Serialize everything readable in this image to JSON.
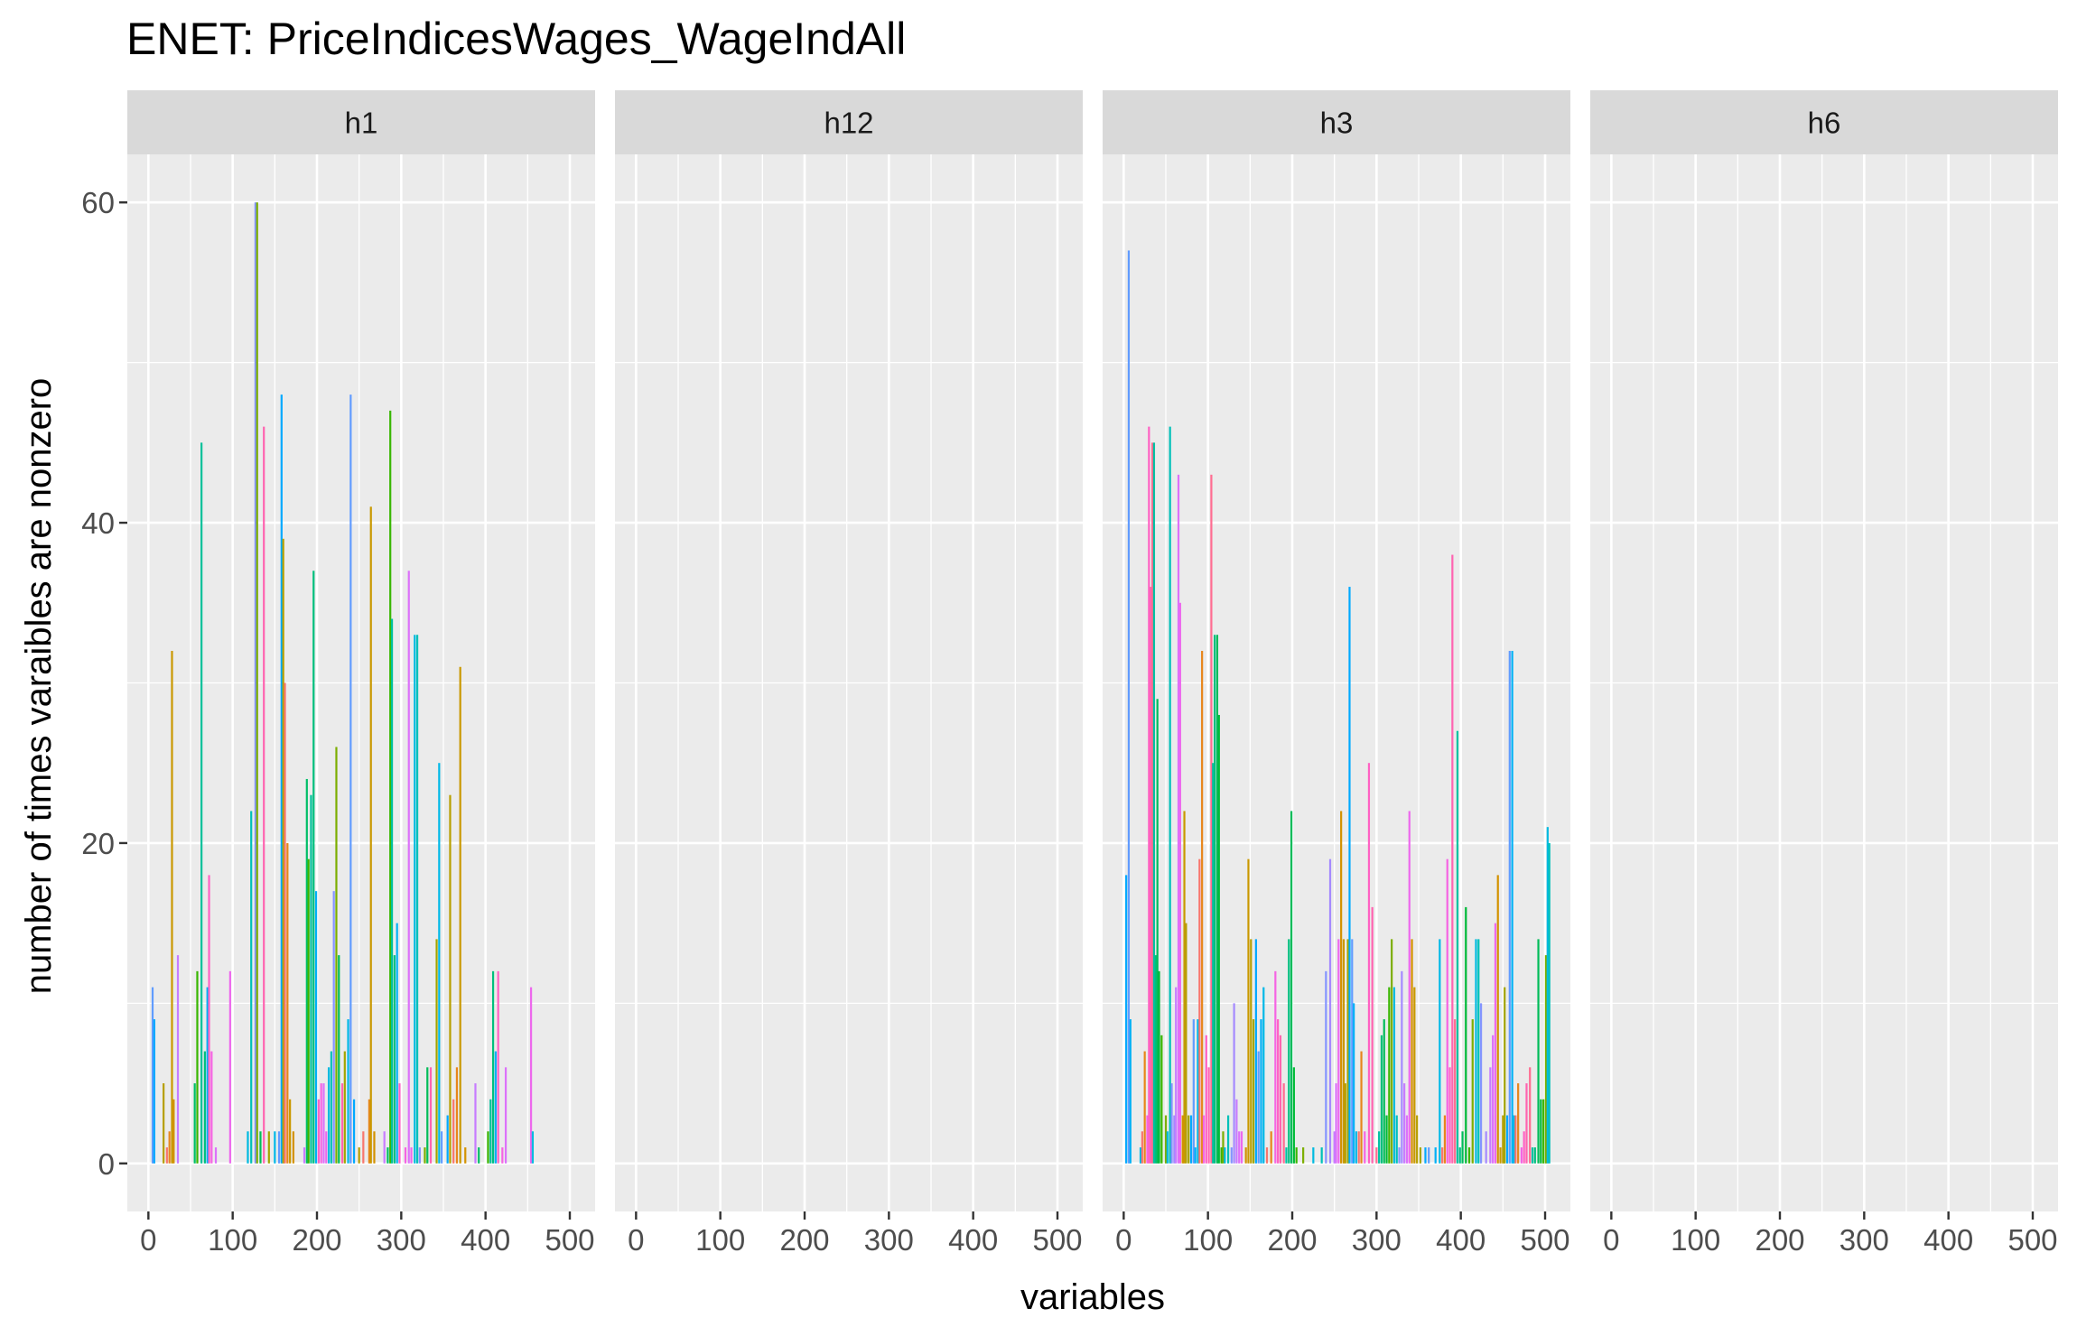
{
  "chart_data": {
    "type": "bar",
    "title": "ENET: PriceIndicesWages_WageIndAll",
    "xlabel": "variables",
    "ylabel": "number of times varaibles are nonzero",
    "xlim": [
      -25,
      530
    ],
    "ylim": [
      -3,
      63
    ],
    "x_ticks": [
      0,
      100,
      200,
      300,
      400,
      500
    ],
    "x_tick_labels": [
      "0",
      "100",
      "200",
      "300",
      "400",
      "500"
    ],
    "y_ticks": [
      0,
      20,
      40,
      60
    ],
    "y_tick_labels": [
      "0",
      "20",
      "40",
      "60"
    ],
    "grid": true,
    "legend": "none",
    "facets": [
      {
        "label": "h1",
        "bars": [
          [
            5,
            11
          ],
          [
            7,
            9
          ],
          [
            18,
            5
          ],
          [
            22,
            1
          ],
          [
            25,
            2
          ],
          [
            28,
            32
          ],
          [
            30,
            4
          ],
          [
            35,
            13
          ],
          [
            55,
            5
          ],
          [
            58,
            12
          ],
          [
            63,
            45
          ],
          [
            67,
            7
          ],
          [
            70,
            11
          ],
          [
            72,
            18
          ],
          [
            75,
            7
          ],
          [
            80,
            1
          ],
          [
            97,
            12
          ],
          [
            118,
            2
          ],
          [
            122,
            22
          ],
          [
            127,
            60
          ],
          [
            129,
            60
          ],
          [
            133,
            2
          ],
          [
            137,
            46
          ],
          [
            143,
            2
          ],
          [
            150,
            2
          ],
          [
            155,
            2
          ],
          [
            158,
            48
          ],
          [
            160,
            39
          ],
          [
            162,
            30
          ],
          [
            165,
            20
          ],
          [
            168,
            4
          ],
          [
            172,
            2
          ],
          [
            185,
            1
          ],
          [
            188,
            24
          ],
          [
            190,
            19
          ],
          [
            193,
            23
          ],
          [
            196,
            37
          ],
          [
            199,
            17
          ],
          [
            202,
            4
          ],
          [
            205,
            5
          ],
          [
            208,
            5
          ],
          [
            211,
            2
          ],
          [
            214,
            6
          ],
          [
            217,
            7
          ],
          [
            220,
            17
          ],
          [
            223,
            26
          ],
          [
            226,
            13
          ],
          [
            230,
            5
          ],
          [
            233,
            7
          ],
          [
            237,
            9
          ],
          [
            240,
            48
          ],
          [
            244,
            4
          ],
          [
            250,
            1
          ],
          [
            255,
            2
          ],
          [
            262,
            4
          ],
          [
            264,
            41
          ],
          [
            268,
            2
          ],
          [
            280,
            2
          ],
          [
            284,
            1
          ],
          [
            287,
            47
          ],
          [
            289,
            34
          ],
          [
            292,
            13
          ],
          [
            295,
            15
          ],
          [
            298,
            5
          ],
          [
            305,
            1
          ],
          [
            309,
            37
          ],
          [
            312,
            1
          ],
          [
            316,
            33
          ],
          [
            319,
            33
          ],
          [
            322,
            1
          ],
          [
            328,
            1
          ],
          [
            331,
            6
          ],
          [
            335,
            6
          ],
          [
            342,
            14
          ],
          [
            345,
            25
          ],
          [
            348,
            2
          ],
          [
            355,
            3
          ],
          [
            358,
            23
          ],
          [
            362,
            4
          ],
          [
            366,
            6
          ],
          [
            370,
            31
          ],
          [
            376,
            1
          ],
          [
            388,
            5
          ],
          [
            392,
            1
          ],
          [
            403,
            2
          ],
          [
            406,
            4
          ],
          [
            409,
            12
          ],
          [
            412,
            7
          ],
          [
            415,
            12
          ],
          [
            420,
            1
          ],
          [
            424,
            6
          ],
          [
            454,
            11
          ],
          [
            456,
            2
          ]
        ],
        "colors": [
          "#619CFF",
          "#00A9FF",
          "#B79F00",
          "#F8766D",
          "#E7861B",
          "#C99800",
          "#D39200",
          "#C77CFF",
          "#00BE67",
          "#39B600",
          "#00C19A",
          "#00BF7D",
          "#00B0F6",
          "#FF61C3",
          "#F564E3",
          "#DC71FA",
          "#ED68ED",
          "#00BAE0",
          "#00C0B8",
          "#8494FF",
          "#7CAE00",
          "#00BC59",
          "#FF64B0",
          "#A3A500",
          "#00B8E7"
        ]
      },
      {
        "label": "h12",
        "bars": [],
        "colors": []
      },
      {
        "label": "h3",
        "bars": [
          [
            3,
            18
          ],
          [
            6,
            57
          ],
          [
            8,
            9
          ],
          [
            20,
            1
          ],
          [
            22,
            2
          ],
          [
            25,
            7
          ],
          [
            28,
            3
          ],
          [
            30,
            46
          ],
          [
            32,
            36
          ],
          [
            34,
            45
          ],
          [
            36,
            45
          ],
          [
            38,
            13
          ],
          [
            40,
            29
          ],
          [
            42,
            12
          ],
          [
            45,
            8
          ],
          [
            50,
            3
          ],
          [
            52,
            2
          ],
          [
            55,
            46
          ],
          [
            57,
            5
          ],
          [
            60,
            3
          ],
          [
            62,
            11
          ],
          [
            65,
            43
          ],
          [
            67,
            35
          ],
          [
            70,
            3
          ],
          [
            72,
            22
          ],
          [
            74,
            15
          ],
          [
            77,
            3
          ],
          [
            80,
            3
          ],
          [
            83,
            9
          ],
          [
            85,
            1
          ],
          [
            88,
            9
          ],
          [
            90,
            19
          ],
          [
            93,
            32
          ],
          [
            95,
            3
          ],
          [
            98,
            8
          ],
          [
            101,
            6
          ],
          [
            104,
            43
          ],
          [
            106,
            25
          ],
          [
            108,
            33
          ],
          [
            111,
            33
          ],
          [
            113,
            28
          ],
          [
            116,
            1
          ],
          [
            118,
            2
          ],
          [
            120,
            1
          ],
          [
            124,
            3
          ],
          [
            128,
            1
          ],
          [
            131,
            10
          ],
          [
            134,
            4
          ],
          [
            137,
            2
          ],
          [
            140,
            2
          ],
          [
            145,
            1
          ],
          [
            148,
            19
          ],
          [
            151,
            14
          ],
          [
            154,
            9
          ],
          [
            157,
            14
          ],
          [
            160,
            7
          ],
          [
            163,
            9
          ],
          [
            166,
            11
          ],
          [
            170,
            1
          ],
          [
            175,
            2
          ],
          [
            180,
            12
          ],
          [
            183,
            9
          ],
          [
            186,
            8
          ],
          [
            190,
            5
          ],
          [
            193,
            1
          ],
          [
            196,
            14
          ],
          [
            199,
            22
          ],
          [
            202,
            6
          ],
          [
            205,
            1
          ],
          [
            213,
            1
          ],
          [
            225,
            1
          ],
          [
            235,
            1
          ],
          [
            240,
            12
          ],
          [
            245,
            19
          ],
          [
            250,
            2
          ],
          [
            252,
            5
          ],
          [
            255,
            14
          ],
          [
            258,
            22
          ],
          [
            261,
            14
          ],
          [
            263,
            5
          ],
          [
            266,
            14
          ],
          [
            268,
            36
          ],
          [
            271,
            14
          ],
          [
            273,
            10
          ],
          [
            276,
            2
          ],
          [
            279,
            2
          ],
          [
            282,
            7
          ],
          [
            286,
            2
          ],
          [
            291,
            25
          ],
          [
            295,
            16
          ],
          [
            300,
            1
          ],
          [
            303,
            2
          ],
          [
            306,
            8
          ],
          [
            309,
            9
          ],
          [
            312,
            3
          ],
          [
            315,
            11
          ],
          [
            318,
            14
          ],
          [
            321,
            11
          ],
          [
            324,
            3
          ],
          [
            327,
            1
          ],
          [
            330,
            12
          ],
          [
            333,
            5
          ],
          [
            336,
            3
          ],
          [
            339,
            22
          ],
          [
            342,
            14
          ],
          [
            345,
            11
          ],
          [
            348,
            3
          ],
          [
            352,
            1
          ],
          [
            358,
            1
          ],
          [
            362,
            1
          ],
          [
            370,
            1
          ],
          [
            375,
            14
          ],
          [
            378,
            1
          ],
          [
            381,
            3
          ],
          [
            384,
            19
          ],
          [
            387,
            6
          ],
          [
            390,
            38
          ],
          [
            393,
            9
          ],
          [
            396,
            27
          ],
          [
            399,
            1
          ],
          [
            402,
            2
          ],
          [
            406,
            16
          ],
          [
            410,
            1
          ],
          [
            414,
            9
          ],
          [
            418,
            14
          ],
          [
            421,
            14
          ],
          [
            424,
            10
          ],
          [
            430,
            2
          ],
          [
            435,
            6
          ],
          [
            438,
            8
          ],
          [
            441,
            15
          ],
          [
            444,
            18
          ],
          [
            447,
            1
          ],
          [
            450,
            3
          ],
          [
            452,
            11
          ],
          [
            455,
            3
          ],
          [
            458,
            32
          ],
          [
            461,
            32
          ],
          [
            463,
            3
          ],
          [
            465,
            3
          ],
          [
            468,
            5
          ],
          [
            472,
            1
          ],
          [
            475,
            2
          ],
          [
            478,
            5
          ],
          [
            482,
            6
          ],
          [
            485,
            1
          ],
          [
            488,
            1
          ],
          [
            492,
            14
          ],
          [
            495,
            4
          ],
          [
            498,
            4
          ],
          [
            501,
            13
          ],
          [
            503,
            21
          ],
          [
            505,
            20
          ]
        ],
        "colors": [
          "#00A9FF",
          "#619CFF",
          "#00B0F6",
          "#00B8E7",
          "#F8766D",
          "#E7861B",
          "#F564E3",
          "#FF61C3",
          "#FF64B0",
          "#FF6C91",
          "#00C1A3",
          "#00BF7D",
          "#00BC59",
          "#00BA38",
          "#39B600",
          "#7CAE00",
          "#00BAE0",
          "#00C0B8",
          "#8494FF",
          "#A58AFF",
          "#C77CFF",
          "#DC71FA",
          "#ED68ED",
          "#D39200",
          "#C99800",
          "#B79F00",
          "#A3A500"
        ]
      },
      {
        "label": "h6",
        "bars": [],
        "colors": []
      }
    ]
  }
}
